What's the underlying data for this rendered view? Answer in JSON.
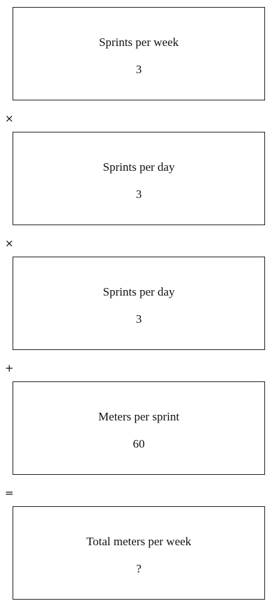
{
  "steps": [
    {
      "label": "Sprints per week",
      "value": "3"
    },
    {
      "label": "Sprints per day",
      "value": "3"
    },
    {
      "label": "Sprints per day",
      "value": "3"
    },
    {
      "label": "Meters per sprint",
      "value": "60"
    },
    {
      "label": "Total meters per week",
      "value": "?"
    }
  ],
  "operators": [
    "×",
    "×",
    "+",
    "="
  ]
}
